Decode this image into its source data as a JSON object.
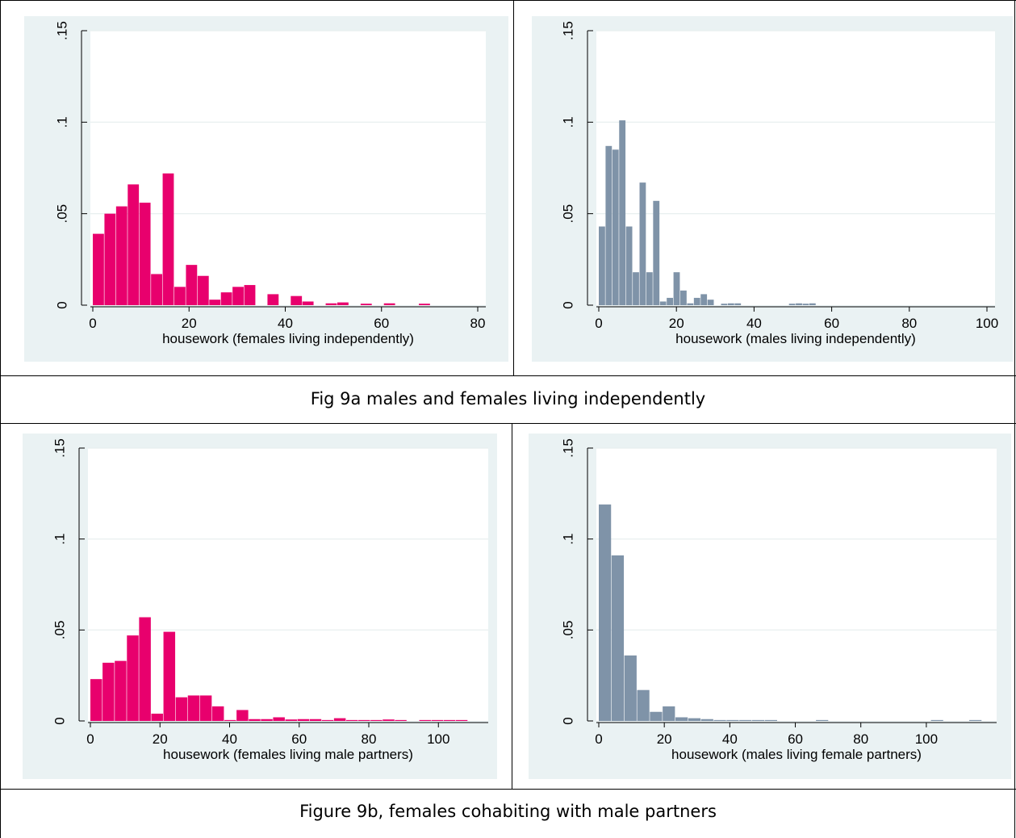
{
  "captions": {
    "top": "Fig 9a males and females living independently",
    "bottom": "Figure 9b, females cohabiting with male partners"
  },
  "colors": {
    "female_bar": "#e8006d",
    "male_bar": "#7f93a8",
    "plot_region": "#ffffff",
    "panel_bg": "#eaf2f3",
    "gridline": "#e6eeee"
  },
  "chart_data": [
    {
      "type": "bar",
      "histogram": true,
      "xlabel": "housework (females living independently)",
      "ylabel": "",
      "xlim": [
        0,
        80
      ],
      "ylim": [
        0,
        0.15
      ],
      "xticks": [
        0,
        20,
        40,
        60,
        80
      ],
      "yticks": [
        0,
        0.05,
        0.1,
        0.15
      ],
      "ytick_labels": [
        "0",
        ".05",
        ".1",
        ".15"
      ],
      "bin_width": 2.42,
      "bins_start": [
        0,
        2.42,
        4.84,
        7.26,
        9.68,
        12.1,
        14.52,
        16.94,
        19.36,
        21.78,
        24.2,
        26.62,
        29.04,
        31.46,
        33.88,
        36.3,
        38.72,
        41.14,
        43.56,
        45.98,
        48.4,
        50.82,
        53.24,
        55.66,
        58.08,
        60.5,
        62.92,
        65.34,
        67.76
      ],
      "values": [
        0.039,
        0.05,
        0.054,
        0.066,
        0.056,
        0.017,
        0.072,
        0.01,
        0.022,
        0.016,
        0.003,
        0.007,
        0.01,
        0.011,
        0,
        0.006,
        0,
        0.005,
        0.002,
        0,
        0.001,
        0.0015,
        0,
        0.0008,
        0,
        0.001,
        0,
        0,
        0.0008
      ],
      "color": "#e8006d"
    },
    {
      "type": "bar",
      "histogram": true,
      "xlabel": "housework (males living independently)",
      "ylabel": "",
      "xlim": [
        0,
        100
      ],
      "ylim": [
        0,
        0.15
      ],
      "xticks": [
        0,
        20,
        40,
        60,
        80,
        100
      ],
      "yticks": [
        0,
        0.05,
        0.1,
        0.15
      ],
      "ytick_labels": [
        "0",
        ".05",
        ".1",
        ".15"
      ],
      "bin_width": 1.75,
      "bins_start": [
        0,
        1.75,
        3.5,
        5.25,
        7.0,
        8.75,
        10.5,
        12.25,
        14.0,
        15.75,
        17.5,
        19.25,
        21.0,
        22.75,
        24.5,
        26.25,
        28.0,
        31.5,
        33.25,
        35.0,
        49.0,
        50.75,
        52.5,
        54.25
      ],
      "values": [
        0.043,
        0.087,
        0.085,
        0.101,
        0.043,
        0.018,
        0.067,
        0.018,
        0.057,
        0.002,
        0.004,
        0.018,
        0.008,
        0.001,
        0.004,
        0.006,
        0.003,
        0.0008,
        0.001,
        0.001,
        0.0008,
        0.001,
        0.0008,
        0.001
      ],
      "color": "#7f93a8"
    },
    {
      "type": "bar",
      "histogram": true,
      "xlabel": "housework (females living male partners)",
      "ylabel": "",
      "xlim": [
        0,
        112
      ],
      "ylim": [
        0,
        0.15
      ],
      "xticks": [
        0,
        20,
        40,
        60,
        80,
        100
      ],
      "yticks": [
        0,
        0.05,
        0.1,
        0.15
      ],
      "ytick_labels": [
        "0",
        ".05",
        ".1",
        ".15"
      ],
      "bin_width": 3.5,
      "bins_start": [
        0,
        3.5,
        7.0,
        10.5,
        14.0,
        17.5,
        21.0,
        24.5,
        28.0,
        31.5,
        35.0,
        38.5,
        42.0,
        45.5,
        49.0,
        52.5,
        56.0,
        59.5,
        63.0,
        66.5,
        70.0,
        73.5,
        77.0,
        80.5,
        84.0,
        87.5,
        94.5,
        98.0,
        101.5,
        105.0
      ],
      "values": [
        0.023,
        0.032,
        0.033,
        0.047,
        0.057,
        0.004,
        0.049,
        0.013,
        0.014,
        0.014,
        0.008,
        0.0005,
        0.006,
        0.001,
        0.001,
        0.002,
        0.0008,
        0.001,
        0.001,
        0.0005,
        0.0015,
        0.0005,
        0.0005,
        0.0005,
        0.0008,
        0.0005,
        0.0005,
        0.0005,
        0.0005,
        0.0005
      ],
      "color": "#e8006d"
    },
    {
      "type": "bar",
      "histogram": true,
      "xlabel": "housework (males living female partners)",
      "ylabel": "",
      "xlim": [
        0,
        119
      ],
      "ylim": [
        0,
        0.15
      ],
      "xticks": [
        0,
        20,
        40,
        60,
        80,
        100
      ],
      "yticks": [
        0,
        0.05,
        0.1,
        0.15
      ],
      "ytick_labels": [
        "0",
        ".05",
        ".1",
        ".15"
      ],
      "bin_width": 3.9,
      "bins_start": [
        0,
        3.9,
        7.8,
        11.7,
        15.6,
        19.5,
        23.4,
        27.3,
        31.2,
        35.1,
        39.0,
        42.9,
        46.8,
        50.7,
        66.3,
        101.4,
        113.1
      ],
      "values": [
        0.119,
        0.091,
        0.036,
        0.017,
        0.005,
        0.008,
        0.002,
        0.0015,
        0.001,
        0.0005,
        0.0005,
        0.0005,
        0.0005,
        0.0005,
        0.0005,
        0.0005,
        0.0005
      ],
      "color": "#7f93a8"
    }
  ]
}
